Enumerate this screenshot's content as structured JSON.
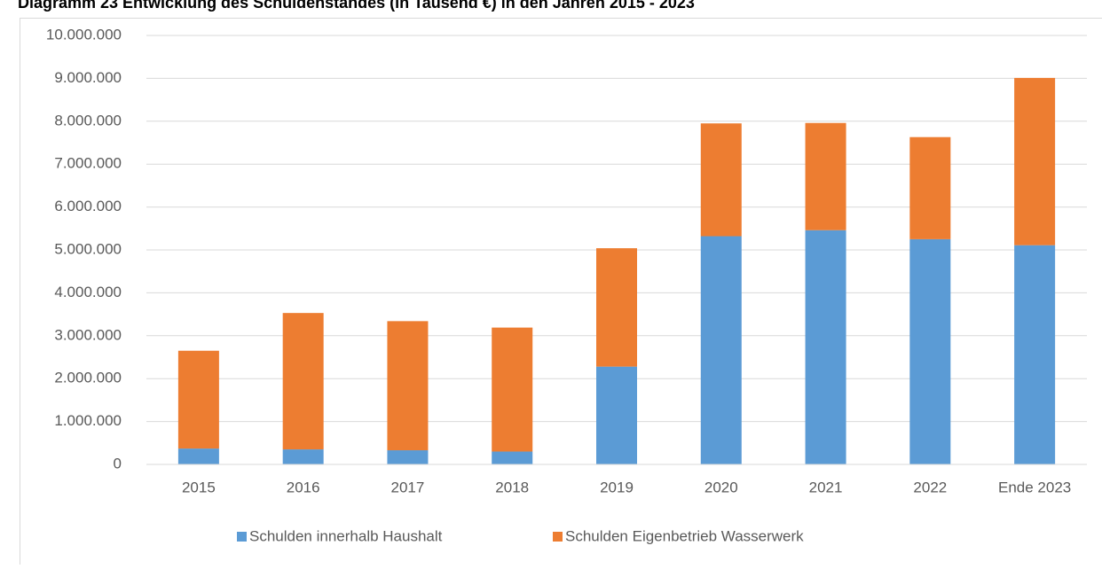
{
  "chart_data": {
    "type": "stacked_bar",
    "title": "Diagramm 23 Entwicklung des Schuldenstandes (in Tausend €) in den Jahren 2015 - 2023",
    "categories": [
      "2015",
      "2016",
      "2017",
      "2018",
      "2019",
      "2020",
      "2021",
      "2022",
      "Ende 2023"
    ],
    "series": [
      {
        "name": "Schulden innerhalb Haushalt",
        "color": "#5b9bd5",
        "values": [
          370000,
          350000,
          330000,
          300000,
          2280000,
          5320000,
          5460000,
          5250000,
          5110000
        ]
      },
      {
        "name": "Schulden Eigenbetrieb Wasserwerk",
        "color": "#ed7d31",
        "values": [
          2280000,
          3180000,
          3010000,
          2890000,
          2760000,
          2630000,
          2500000,
          2380000,
          3900000
        ]
      }
    ],
    "ylim": [
      0,
      10000000
    ],
    "yticks": [
      0,
      {
        "value": 1000000,
        "label": "1.000.000"
      },
      {
        "value": 2000000,
        "label": "2.000.000"
      },
      {
        "value": 3000000,
        "label": "3.000.000"
      },
      {
        "value": 4000000,
        "label": "4.000.000"
      },
      {
        "value": 5000000,
        "label": "5.000.000"
      },
      {
        "value": 6000000,
        "label": "6.000.000"
      },
      {
        "value": 7000000,
        "label": "7.000.000"
      },
      {
        "value": 8000000,
        "label": "8.000.000"
      },
      {
        "value": 9000000,
        "label": "9.000.000"
      },
      {
        "value": 10000000,
        "label": "10.000.000"
      }
    ],
    "grid": true,
    "legend": "bottom"
  }
}
